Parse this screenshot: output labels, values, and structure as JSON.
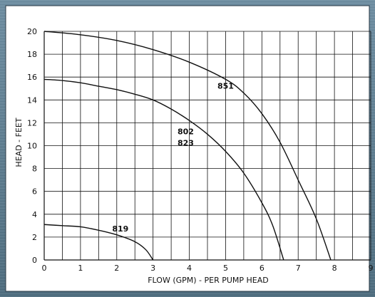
{
  "chart_data": {
    "type": "line",
    "xlabel": "FLOW (GPM) - PER PUMP HEAD",
    "ylabel": "HEAD - FEET",
    "xlim": [
      0,
      9
    ],
    "ylim": [
      0,
      20
    ],
    "x_ticks": [
      "0",
      "1",
      "2",
      "3",
      "4",
      "5",
      "6",
      "7",
      "8",
      "9"
    ],
    "y_ticks": [
      "0",
      "2",
      "4",
      "6",
      "8",
      "10",
      "12",
      "14",
      "16",
      "18",
      "20"
    ],
    "grid": true,
    "series": [
      {
        "name": "851",
        "x": [
          0,
          1,
          2,
          3,
          4,
          5,
          5.5,
          6,
          6.5,
          7,
          7.5,
          7.9
        ],
        "y": [
          20,
          19.7,
          19.2,
          18.4,
          17.3,
          15.8,
          14.6,
          12.8,
          10.3,
          7.0,
          3.6,
          0
        ]
      },
      {
        "name": "802",
        "x": [
          0,
          0.5,
          1,
          1.5,
          2,
          2.5,
          3,
          3.5,
          4,
          4.5,
          5,
          5.5,
          6,
          6.3,
          6.6
        ],
        "y": [
          15.8,
          15.7,
          15.5,
          15.2,
          14.9,
          14.5,
          14.0,
          13.2,
          12.2,
          11.0,
          9.5,
          7.6,
          5.0,
          3.0,
          0
        ]
      },
      {
        "name": "819",
        "x": [
          0,
          0.5,
          1,
          1.5,
          2,
          2.5,
          2.8,
          3.0
        ],
        "y": [
          3.1,
          3.0,
          2.9,
          2.6,
          2.2,
          1.6,
          0.9,
          0
        ]
      }
    ],
    "labels": [
      {
        "text": "851",
        "x": 5.0,
        "y": 15.0
      },
      {
        "text": "802",
        "x": 3.9,
        "y": 11.0
      },
      {
        "text": "823",
        "x": 3.9,
        "y": 10.0
      },
      {
        "text": "819",
        "x": 2.1,
        "y": 2.5
      }
    ]
  }
}
